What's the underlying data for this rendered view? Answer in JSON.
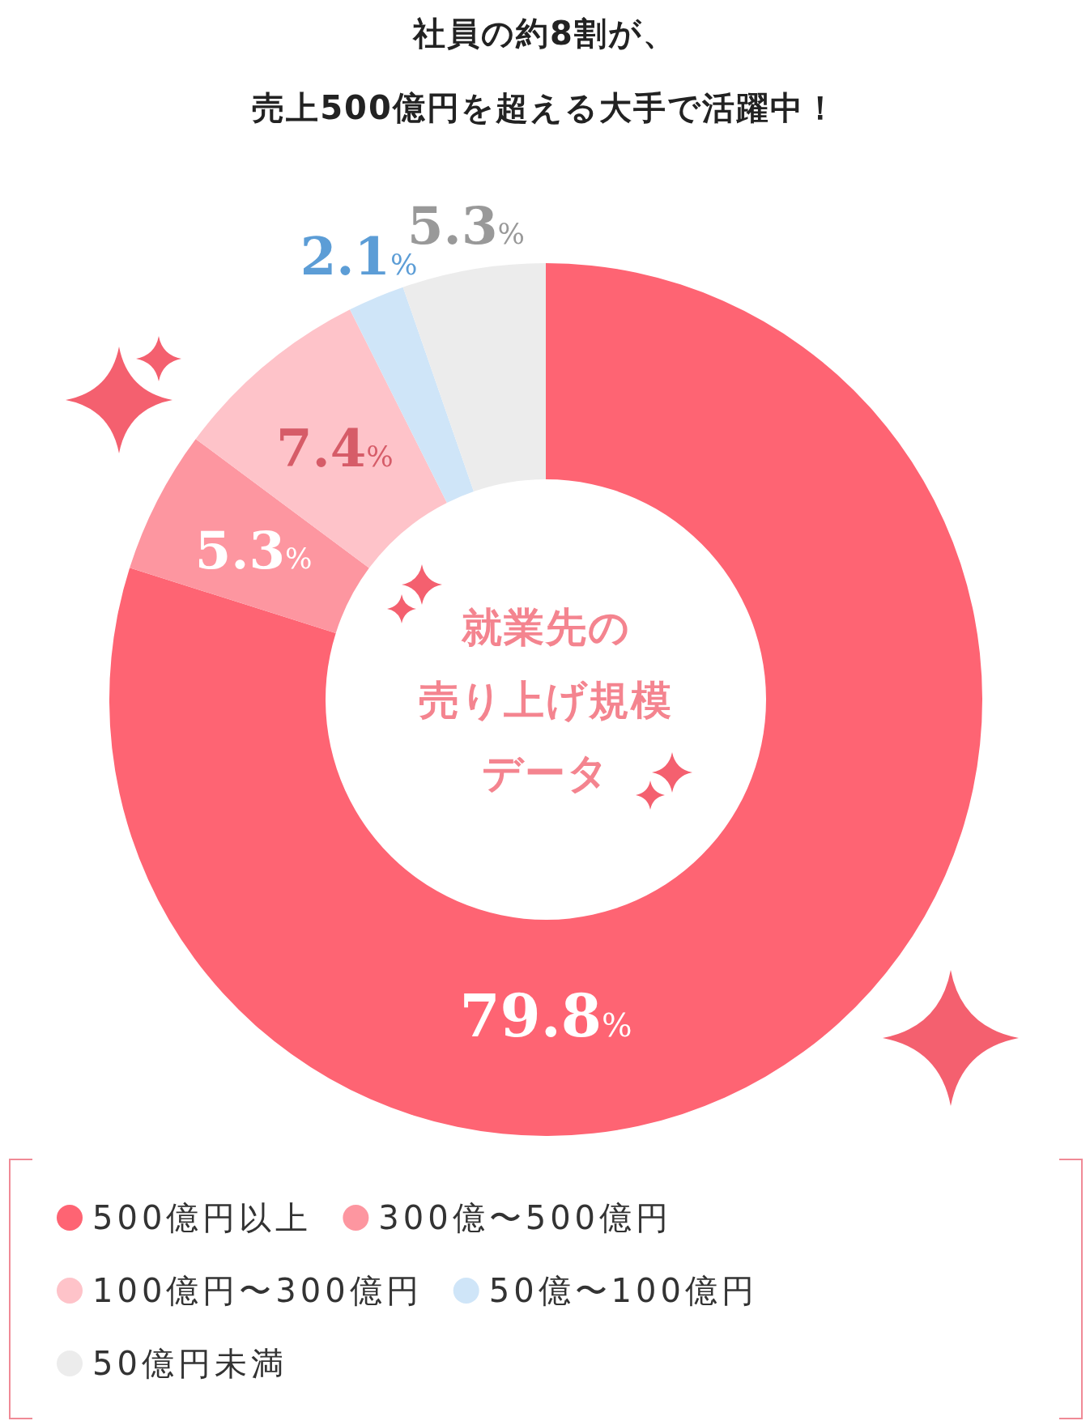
{
  "chart_data": {
    "type": "donut",
    "title": "社員の約8割が、",
    "subtitle": "売上500億円を超える大手で活躍中！",
    "categories": [
      "500億円以上",
      "300億〜500億円",
      "100億円〜300億円",
      "50億〜100億円",
      "50億円未満"
    ],
    "values": [
      79.8,
      5.3,
      7.4,
      2.1,
      5.3
    ],
    "colors": [
      "#fe6473",
      "#fd96a0",
      "#fec3c9",
      "#cfe5f8",
      "#ececec"
    ],
    "value_labels": [
      "79.8%",
      "5.3%",
      "7.4%",
      "2.1%",
      "5.3%"
    ],
    "legend": "bottom",
    "annotations": [
      "就業先の",
      "売り上げ規模",
      "データ"
    ]
  }
}
